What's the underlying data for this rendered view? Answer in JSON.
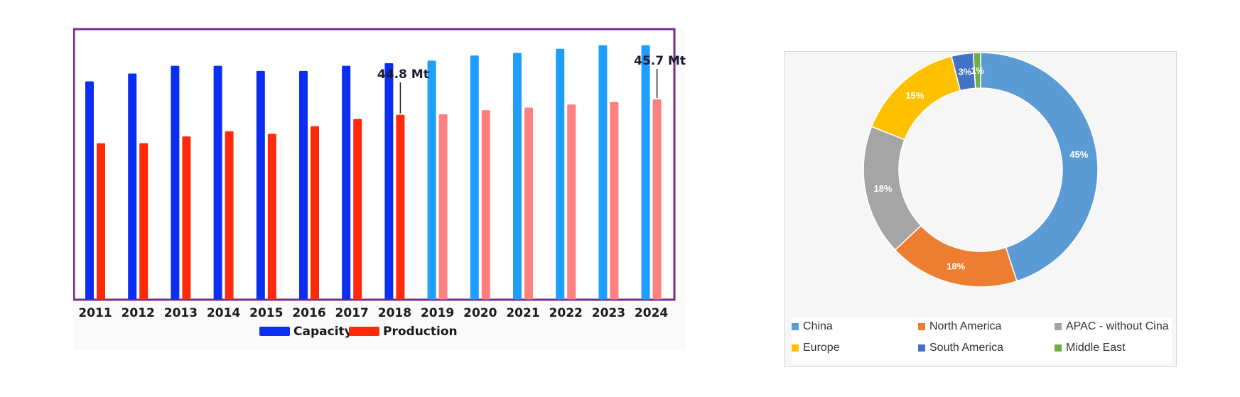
{
  "chart_data": [
    {
      "type": "bar",
      "categories": [
        "2011",
        "2012",
        "2013",
        "2014",
        "2015",
        "2016",
        "2017",
        "2018",
        "2019",
        "2020",
        "2021",
        "2022",
        "2023",
        "2024"
      ],
      "series": [
        {
          "name": "Capacity",
          "values": [
            42.5,
            44.0,
            45.5,
            45.5,
            44.5,
            44.5,
            45.5,
            46.0,
            46.5,
            47.5,
            48.0,
            48.8,
            49.5,
            49.5
          ],
          "color": "#0a2ff0",
          "forecast_color": "#1e9fff"
        },
        {
          "name": "Production",
          "values": [
            30.5,
            30.5,
            31.8,
            32.8,
            32.3,
            33.8,
            35.2,
            36.0,
            36.1,
            36.9,
            37.4,
            38.0,
            38.5,
            39.0
          ],
          "color": "#ff2a0a",
          "forecast_color": "#ff8080"
        }
      ],
      "forecast_from": "2019",
      "annotations": [
        {
          "text": "44.8 Mt",
          "category": "2018"
        },
        {
          "text": "45.7 Mt",
          "category": "2024"
        }
      ],
      "ylim": [
        0,
        60
      ],
      "legend": "bottom",
      "grid": false,
      "frame_color": "#7b2b8f",
      "title": "",
      "xlabel": "",
      "ylabel": ""
    },
    {
      "type": "pie",
      "donut": true,
      "slices": [
        {
          "label": "China",
          "value": 45,
          "text": "45%",
          "color": "#5b9bd5"
        },
        {
          "label": "North America",
          "value": 18,
          "text": "18%",
          "color": "#ed7d31"
        },
        {
          "label": "APAC - without Cina",
          "value": 18,
          "text": "18%",
          "color": "#a5a5a5"
        },
        {
          "label": "Europe",
          "value": 15,
          "text": "15%",
          "color": "#ffc000"
        },
        {
          "label": "South America",
          "value": 3,
          "text": "3%",
          "color": "#4472c4"
        },
        {
          "label": "Middle East",
          "value": 1,
          "text": "1%",
          "color": "#70ad47"
        }
      ],
      "legend": "bottom",
      "title": ""
    }
  ]
}
